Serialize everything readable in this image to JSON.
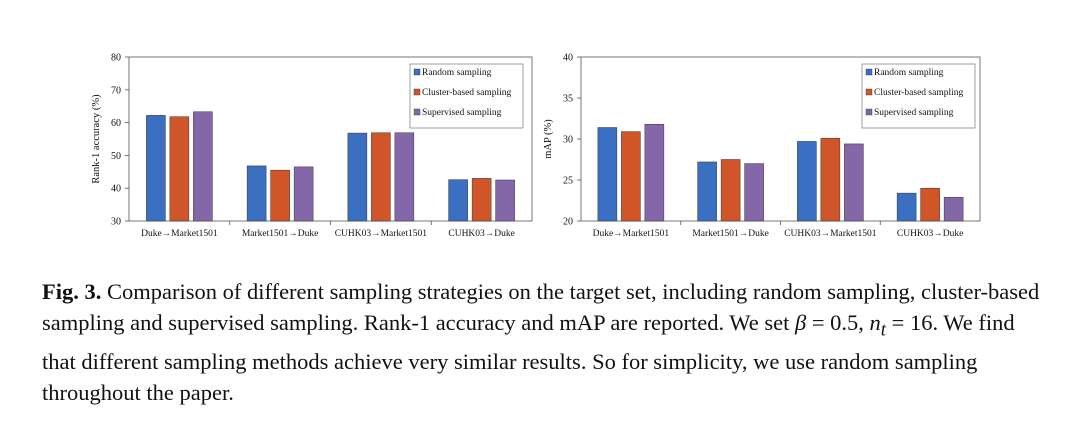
{
  "colors": {
    "random": "#3a6fc1",
    "cluster": "#d0562a",
    "supervised": "#8467a8"
  },
  "chart_data": [
    {
      "type": "bar",
      "ylabel": "Rank-1 accuracy (%)",
      "ylim": [
        30,
        80
      ],
      "yticks": [
        30,
        40,
        50,
        60,
        70,
        80
      ],
      "categories": [
        "Duke→Market1501",
        "Market1501→Duke",
        "CUHK03→Market1501",
        "CUHK03→Duke"
      ],
      "series": [
        {
          "name": "Random sampling",
          "color": "#3a6fc1",
          "values": [
            62.2,
            46.8,
            56.8,
            42.6
          ]
        },
        {
          "name": "Cluster-based sampling",
          "color": "#d0562a",
          "values": [
            61.8,
            45.5,
            56.9,
            43.0
          ]
        },
        {
          "name": "Supervised sampling",
          "color": "#8467a8",
          "values": [
            63.3,
            46.5,
            56.9,
            42.5
          ]
        }
      ],
      "legend_position": "top-right",
      "grid": false
    },
    {
      "type": "bar",
      "ylabel": "mAP (%)",
      "ylim": [
        20,
        40
      ],
      "yticks": [
        20,
        25,
        30,
        35,
        40
      ],
      "categories": [
        "Duke→Market1501",
        "Market1501→Duke",
        "CUHK03→Market1501",
        "CUHK03→Duke"
      ],
      "series": [
        {
          "name": "Random sampling",
          "color": "#3a6fc1",
          "values": [
            31.4,
            27.2,
            29.7,
            23.4
          ]
        },
        {
          "name": "Cluster-based sampling",
          "color": "#d0562a",
          "values": [
            30.9,
            27.5,
            30.1,
            24.0
          ]
        },
        {
          "name": "Supervised sampling",
          "color": "#8467a8",
          "values": [
            31.8,
            27.0,
            29.4,
            22.9
          ]
        }
      ],
      "legend_position": "top-right",
      "grid": false
    }
  ],
  "caption": {
    "label": "Fig. 3.",
    "part1": " Comparison of different sampling strategies on the target set, including random sampling, cluster-based sampling and supervised sampling. Rank-1 accuracy and mAP are reported. We set ",
    "beta_symbol": "β",
    "beta_value": " = 0.5, ",
    "nt_symbol": "n",
    "nt_sub": "t",
    "nt_value": " = 16",
    "part2": ". We find that different sampling methods achieve very similar results. So for simplicity, we use random sampling throughout the paper."
  }
}
